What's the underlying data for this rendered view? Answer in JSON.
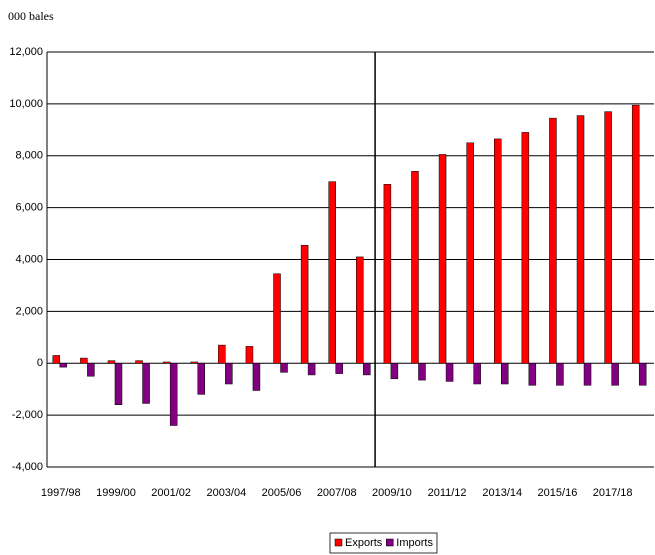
{
  "chart_data": {
    "type": "bar",
    "unit_label": "000 bales",
    "categories": [
      "1997/98",
      null,
      "1999/00",
      null,
      "2001/02",
      null,
      "2003/04",
      null,
      "2005/06",
      null,
      "2007/08",
      null,
      "2009/10",
      null,
      "2011/12",
      null,
      "2013/14",
      null,
      "2015/16",
      null,
      "2017/18",
      null
    ],
    "series": [
      {
        "name": "Exports",
        "color": "#ff0000",
        "values": [
          300,
          200,
          100,
          100,
          50,
          50,
          700,
          650,
          3450,
          4550,
          7000,
          4100,
          6900,
          7400,
          8050,
          8500,
          8650,
          8900,
          9450,
          9550,
          9700,
          9950
        ]
      },
      {
        "name": "Imports",
        "color": "#800080",
        "values": [
          -150,
          -500,
          -1600,
          -1550,
          -2400,
          -1200,
          -800,
          -1050,
          -350,
          -450,
          -400,
          -450,
          -600,
          -650,
          -700,
          -800,
          -800,
          -850,
          -850,
          -850,
          -850,
          -850
        ]
      }
    ],
    "ylim": [
      -4000,
      12000
    ],
    "yticks": [
      {
        "value": -4000,
        "label": "-4,000"
      },
      {
        "value": -2000,
        "label": "-2,000"
      },
      0,
      {
        "value": 2000,
        "label": "2,000"
      },
      {
        "value": 4000,
        "label": "4,000"
      },
      {
        "value": 6000,
        "label": "6,000"
      },
      {
        "value": 8000,
        "label": "8,000"
      },
      {
        "value": 10000,
        "label": "10,000"
      },
      {
        "value": 12000,
        "label": "12,000"
      }
    ],
    "grid": true,
    "legend": "bottom"
  }
}
